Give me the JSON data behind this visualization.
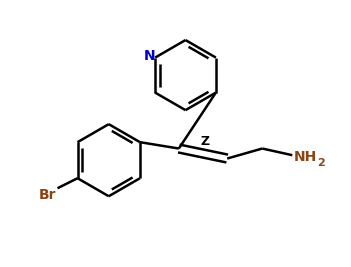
{
  "bg_color": "#ffffff",
  "line_color": "#000000",
  "N_color": "#0000cd",
  "label_color": "#8B4513",
  "Z_color": "#000000",
  "line_width": 1.8,
  "figsize": [
    3.51,
    2.67
  ],
  "dpi": 100,
  "xlim": [
    0,
    10
  ],
  "ylim": [
    0,
    8
  ]
}
